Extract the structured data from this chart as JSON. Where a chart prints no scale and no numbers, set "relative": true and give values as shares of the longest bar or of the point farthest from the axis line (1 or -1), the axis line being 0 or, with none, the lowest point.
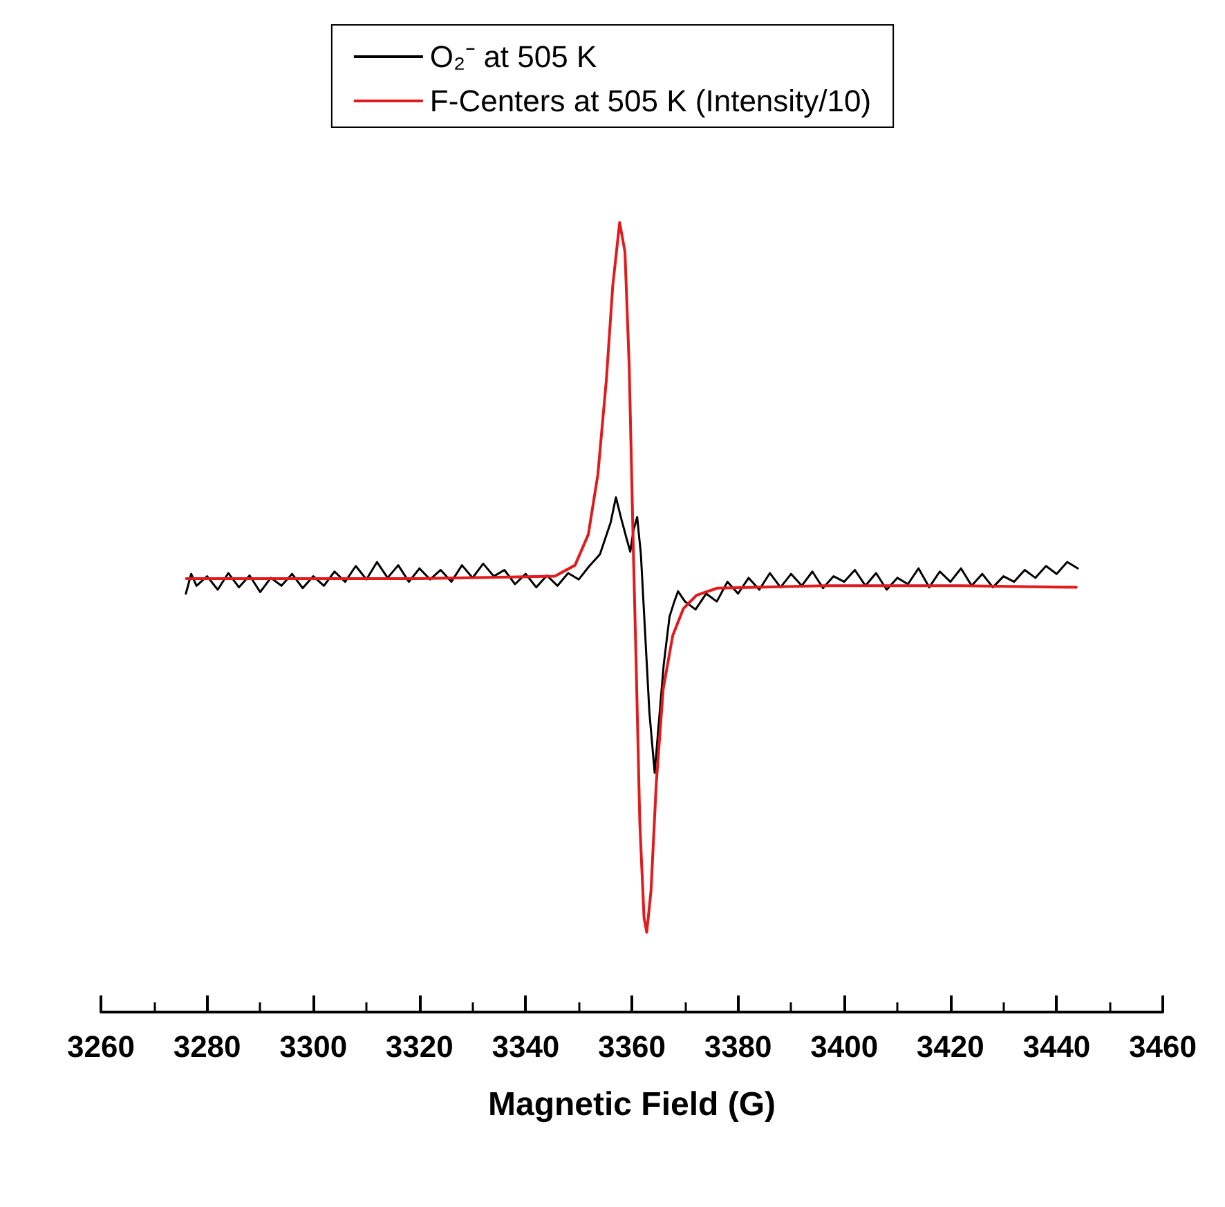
{
  "chart_data": {
    "type": "line",
    "relative": true,
    "xlabel": "Magnetic Field (G)",
    "xlim": [
      3260,
      3460
    ],
    "xticks": [
      3260,
      3280,
      3300,
      3320,
      3340,
      3360,
      3380,
      3400,
      3420,
      3440,
      3460
    ],
    "legend": "top",
    "grid": false,
    "marker": "none",
    "line_style": "solid",
    "series": [
      {
        "name": "O₂⁻ at 505 K",
        "color": "#000000",
        "x": [
          3276,
          3277,
          3278,
          3280,
          3282,
          3284,
          3286,
          3288,
          3290,
          3292,
          3294,
          3296,
          3298,
          3300,
          3302,
          3304,
          3306,
          3308,
          3310,
          3312,
          3314,
          3316,
          3318,
          3320,
          3322,
          3324,
          3326,
          3328,
          3330,
          3332,
          3334,
          3336,
          3338,
          3340,
          3342,
          3344,
          3346,
          3348,
          3350,
          3352,
          3354,
          3355,
          3356,
          3357,
          3358,
          3359,
          3359.7,
          3360.3,
          3361,
          3361.7,
          3362.5,
          3363.3,
          3364.3,
          3365,
          3366,
          3367.1,
          3368,
          3368.7,
          3370,
          3372,
          3374,
          3376,
          3378,
          3380,
          3382,
          3384,
          3386,
          3388,
          3390,
          3392,
          3394,
          3396,
          3398,
          3400,
          3402,
          3404,
          3406,
          3408,
          3410,
          3412,
          3414,
          3416,
          3418,
          3420,
          3422,
          3424,
          3426,
          3428,
          3430,
          3432,
          3434,
          3436,
          3438,
          3440,
          3442,
          3444
        ],
        "values": [
          0.53,
          0.555,
          0.54,
          0.552,
          0.535,
          0.556,
          0.538,
          0.553,
          0.532,
          0.55,
          0.54,
          0.555,
          0.537,
          0.552,
          0.54,
          0.558,
          0.545,
          0.565,
          0.548,
          0.57,
          0.55,
          0.566,
          0.545,
          0.562,
          0.548,
          0.56,
          0.545,
          0.566,
          0.55,
          0.568,
          0.552,
          0.56,
          0.542,
          0.555,
          0.538,
          0.553,
          0.54,
          0.556,
          0.548,
          0.565,
          0.58,
          0.6,
          0.62,
          0.652,
          0.625,
          0.6,
          0.583,
          0.61,
          0.627,
          0.58,
          0.48,
          0.38,
          0.303,
          0.36,
          0.44,
          0.501,
          0.52,
          0.533,
          0.52,
          0.51,
          0.53,
          0.52,
          0.545,
          0.53,
          0.55,
          0.535,
          0.556,
          0.538,
          0.555,
          0.54,
          0.558,
          0.537,
          0.552,
          0.545,
          0.56,
          0.54,
          0.556,
          0.535,
          0.55,
          0.542,
          0.562,
          0.538,
          0.558,
          0.545,
          0.562,
          0.54,
          0.555,
          0.538,
          0.552,
          0.545,
          0.56,
          0.55,
          0.565,
          0.555,
          0.57,
          0.562
        ]
      },
      {
        "name": "F-Centers at 505 K (Intensity/10)",
        "color": "#e31a1c",
        "x": [
          3276.1,
          3319.9,
          3345.5,
          3349.3,
          3351.8,
          3353.6,
          3355.2,
          3356.4,
          3357.7,
          3358.7,
          3359.5,
          3360.3,
          3360.8,
          3361.5,
          3362.3,
          3362.8,
          3363.6,
          3364.6,
          3365.9,
          3367.7,
          3369.7,
          3372.2,
          3376.1,
          3396.5,
          3422,
          3443.7
        ],
        "values": [
          0.549,
          0.549,
          0.552,
          0.566,
          0.605,
          0.681,
          0.801,
          0.92,
          1,
          0.963,
          0.818,
          0.579,
          0.443,
          0.239,
          0.119,
          0.101,
          0.153,
          0.29,
          0.409,
          0.477,
          0.511,
          0.528,
          0.537,
          0.54,
          0.54,
          0.538
        ]
      }
    ]
  }
}
